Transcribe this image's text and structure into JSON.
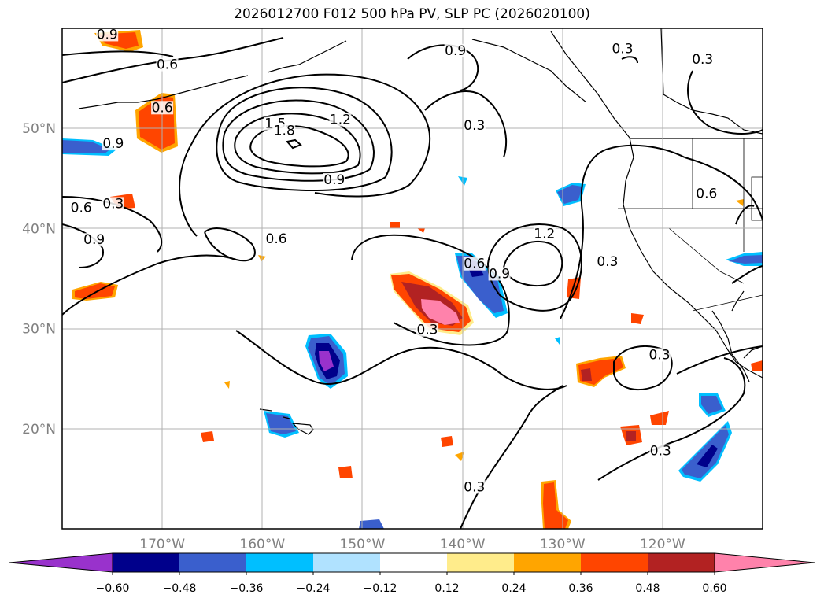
{
  "title": "2026012700 F012 500 hPa PV, SLP PC (2026020100)",
  "map": {
    "extent_lon": [
      -180,
      -110
    ],
    "extent_lat": [
      10,
      60
    ],
    "lon_ticks": [
      {
        "lon": -170,
        "label": "170°W"
      },
      {
        "lon": -160,
        "label": "160°W"
      },
      {
        "lon": -150,
        "label": "150°W"
      },
      {
        "lon": -140,
        "label": "140°W"
      },
      {
        "lon": -130,
        "label": "130°W"
      },
      {
        "lon": -120,
        "label": "120°W"
      }
    ],
    "lat_ticks": [
      {
        "lat": 50,
        "label": "50°N"
      },
      {
        "lat": 40,
        "label": "40°N"
      },
      {
        "lat": 30,
        "label": "30°N"
      },
      {
        "lat": 20,
        "label": "20°N"
      }
    ],
    "gridlines": true
  },
  "colorbar": {
    "ticks": [
      "−0.60",
      "−0.48",
      "−0.36",
      "−0.24",
      "−0.12",
      "0.12",
      "0.24",
      "0.36",
      "0.48",
      "0.60"
    ],
    "colors": [
      "#9932CC",
      "#00008B",
      "#3A5FCD",
      "#00BFFF",
      "#B0E2FF",
      "#FFFFFF",
      "#FFEC8B",
      "#FFA500",
      "#FF4500",
      "#B22222",
      "#FF82AB"
    ],
    "extend": "both"
  },
  "contour_labels": [
    {
      "text": "0.9",
      "lon": -175.5,
      "lat": 59.1
    },
    {
      "text": "0.6",
      "lon": -169.5,
      "lat": 56.1
    },
    {
      "text": "0.6",
      "lon": -170,
      "lat": 51.8
    },
    {
      "text": "0.9",
      "lon": -174.9,
      "lat": 48.2
    },
    {
      "text": "1.5",
      "lon": -158.7,
      "lat": 50.2
    },
    {
      "text": "1.8",
      "lon": -157.8,
      "lat": 49.5
    },
    {
      "text": "1.2",
      "lon": -152.2,
      "lat": 50.6
    },
    {
      "text": "0.9",
      "lon": -152.8,
      "lat": 44.6
    },
    {
      "text": "0.9",
      "lon": -140.7,
      "lat": 57.5
    },
    {
      "text": "0.3",
      "lon": -138.8,
      "lat": 50.0
    },
    {
      "text": "0.3",
      "lon": -124.0,
      "lat": 57.7
    },
    {
      "text": "0.3",
      "lon": -116.0,
      "lat": 56.6
    },
    {
      "text": "0.6",
      "lon": -115.6,
      "lat": 43.2
    },
    {
      "text": "0.6",
      "lon": -178.1,
      "lat": 41.8
    },
    {
      "text": "0.3",
      "lon": -174.9,
      "lat": 42.2
    },
    {
      "text": "0.9",
      "lon": -176.8,
      "lat": 38.6
    },
    {
      "text": "0.6",
      "lon": -158.6,
      "lat": 38.7
    },
    {
      "text": "1.2",
      "lon": -131.8,
      "lat": 39.2
    },
    {
      "text": "0.6",
      "lon": -138.8,
      "lat": 36.2
    },
    {
      "text": "0.9",
      "lon": -136.3,
      "lat": 35.2
    },
    {
      "text": "0.3",
      "lon": -125.5,
      "lat": 36.4
    },
    {
      "text": "0.3",
      "lon": -143.5,
      "lat": 29.6
    },
    {
      "text": "0.3",
      "lon": -120.3,
      "lat": 27.1
    },
    {
      "text": "0.3",
      "lon": -120.2,
      "lat": 17.5
    },
    {
      "text": "0.3",
      "lon": -138.8,
      "lat": 13.9
    }
  ]
}
